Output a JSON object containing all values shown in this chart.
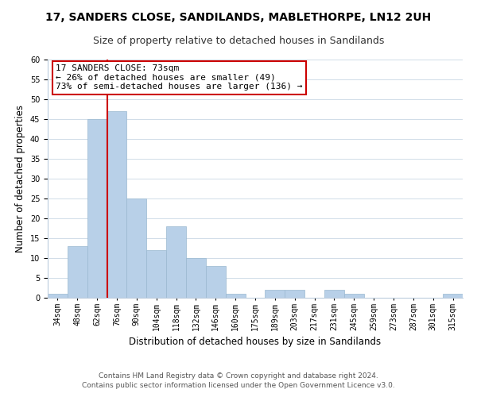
{
  "title": "17, SANDERS CLOSE, SANDILANDS, MABLETHORPE, LN12 2UH",
  "subtitle": "Size of property relative to detached houses in Sandilands",
  "xlabel": "Distribution of detached houses by size in Sandilands",
  "ylabel": "Number of detached properties",
  "footer_line1": "Contains HM Land Registry data © Crown copyright and database right 2024.",
  "footer_line2": "Contains public sector information licensed under the Open Government Licence v3.0.",
  "bin_labels": [
    "34sqm",
    "48sqm",
    "62sqm",
    "76sqm",
    "90sqm",
    "104sqm",
    "118sqm",
    "132sqm",
    "146sqm",
    "160sqm",
    "175sqm",
    "189sqm",
    "203sqm",
    "217sqm",
    "231sqm",
    "245sqm",
    "259sqm",
    "273sqm",
    "287sqm",
    "301sqm",
    "315sqm"
  ],
  "bar_heights": [
    1,
    13,
    45,
    47,
    25,
    12,
    18,
    10,
    8,
    1,
    0,
    2,
    2,
    0,
    2,
    1,
    0,
    0,
    0,
    0,
    1
  ],
  "bar_color": "#b8d0e8",
  "bar_edge_color": "#9ab8d0",
  "vline_color": "#cc0000",
  "annotation_text": "17 SANDERS CLOSE: 73sqm\n← 26% of detached houses are smaller (49)\n73% of semi-detached houses are larger (136) →",
  "annotation_box_facecolor": "#ffffff",
  "annotation_box_edgecolor": "#cc0000",
  "ylim": [
    0,
    60
  ],
  "yticks": [
    0,
    5,
    10,
    15,
    20,
    25,
    30,
    35,
    40,
    45,
    50,
    55,
    60
  ],
  "grid_color": "#d0dce8",
  "background_color": "#ffffff",
  "title_fontsize": 10,
  "subtitle_fontsize": 9,
  "axis_label_fontsize": 8.5,
  "tick_fontsize": 7,
  "annotation_fontsize": 8,
  "footer_fontsize": 6.5
}
